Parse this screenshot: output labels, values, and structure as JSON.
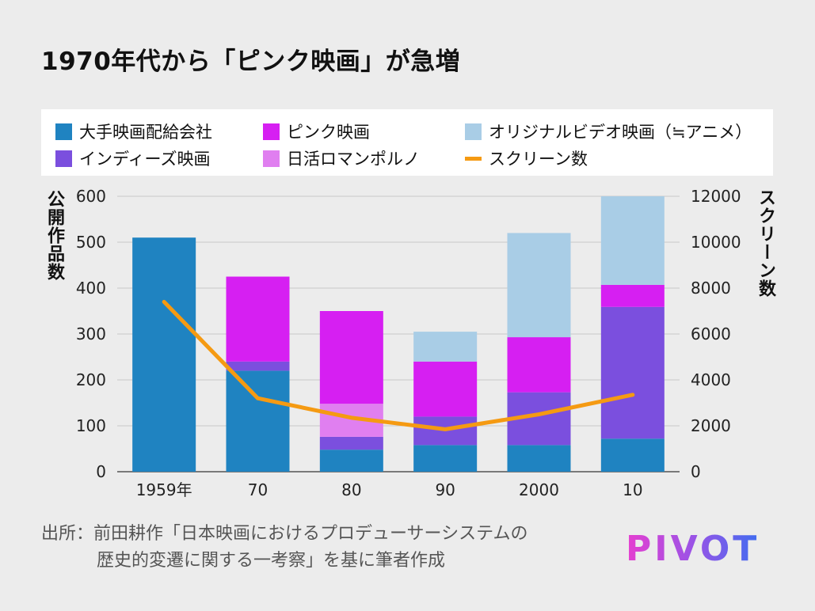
{
  "title": "1970年代から「ピンク映画」が急増",
  "legend": [
    {
      "label": "大手映画配給会社",
      "color": "#1f83c1",
      "kind": "box"
    },
    {
      "label": "ピンク映画",
      "color": "#d61ff2",
      "kind": "box"
    },
    {
      "label": "オリジナルビデオ映画（≒アニメ）",
      "color": "#a9cde6",
      "kind": "box"
    },
    {
      "label": "インディーズ映画",
      "color": "#7b4fde",
      "kind": "box"
    },
    {
      "label": "日活ロマンポルノ",
      "color": "#e07ff0",
      "kind": "box"
    },
    {
      "label": "スクリーン数",
      "color": "#f59a12",
      "kind": "line"
    }
  ],
  "y_left_label": "公開作品数",
  "y_right_label": "スクリーン数",
  "source_line1": "出所：前田耕作「日本映画におけるプロデューサーシステムの",
  "source_line2": "歴史的変遷に関する一考察」を基に筆者作成",
  "logo": "PIVOT",
  "chart_data": {
    "type": "bar",
    "stacked": true,
    "categories": [
      "1959年",
      "70",
      "80",
      "90",
      "2000",
      "10"
    ],
    "series": [
      {
        "name": "大手映画配給会社",
        "color": "#1f83c1",
        "values": [
          510,
          220,
          48,
          58,
          58,
          72
        ]
      },
      {
        "name": "インディーズ映画",
        "color": "#7b4fde",
        "values": [
          0,
          20,
          28,
          62,
          115,
          287
        ]
      },
      {
        "name": "日活ロマンポルノ",
        "color": "#e07ff0",
        "values": [
          0,
          0,
          72,
          0,
          0,
          0
        ]
      },
      {
        "name": "ピンク映画",
        "color": "#d61ff2",
        "values": [
          0,
          185,
          202,
          120,
          120,
          48
        ]
      },
      {
        "name": "オリジナルビデオ映画（≒アニメ）",
        "color": "#a9cde6",
        "values": [
          0,
          0,
          0,
          65,
          227,
          193
        ]
      }
    ],
    "line_series": {
      "name": "スクリーン数",
      "color": "#f59a12",
      "axis": "right",
      "values": [
        7400,
        3200,
        2350,
        1850,
        2500,
        3350
      ]
    },
    "y_left": {
      "min": 0,
      "max": 600,
      "ticks": [
        "0",
        "100",
        "200",
        "300",
        "400",
        "500",
        "600"
      ]
    },
    "y_right": {
      "min": 0,
      "max": 12000,
      "ticks": [
        "0",
        "2000",
        "4000",
        "6000",
        "8000",
        "10000",
        "12000"
      ]
    },
    "grid": true
  }
}
